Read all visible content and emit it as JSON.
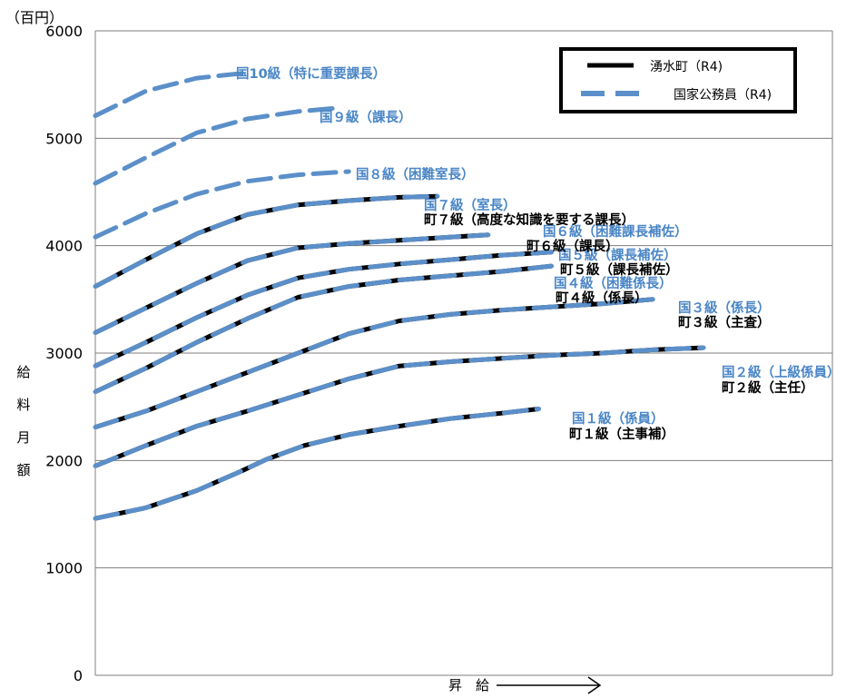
{
  "chart_data": {
    "type": "line",
    "title": "",
    "unit_label": "（百円）",
    "ylabel": "給料月額",
    "xlabel": "昇　給",
    "ylim": [
      0,
      6000
    ],
    "yticks": [
      0,
      1000,
      2000,
      3000,
      4000,
      5000,
      6000
    ],
    "grid": true,
    "legend_position": "top-right",
    "colors": {
      "town": "#000000",
      "national": "#5b8fc9",
      "kuni_label": "#4a86c6",
      "machi_label": "#000000"
    },
    "legend": [
      {
        "name": "湧水町（R4)",
        "style": "solid",
        "color": "#000000"
      },
      {
        "name": "国家公務員（R4)",
        "style": "dashed",
        "color": "#5b8fc9"
      }
    ],
    "series": [
      {
        "name": "国１級（係員）",
        "town_label": "町１級（主事補）",
        "has_town": true,
        "x": [
          0,
          8,
          16,
          23,
          27,
          33,
          40,
          48,
          56,
          64,
          70
        ],
        "values": [
          1460,
          1560,
          1720,
          1900,
          2010,
          2140,
          2240,
          2320,
          2390,
          2440,
          2480
        ]
      },
      {
        "name": "国２級（上級係員）",
        "town_label": "町２級（主任）",
        "has_town": true,
        "x": [
          0,
          8,
          16,
          24,
          32,
          40,
          48,
          56,
          64,
          72,
          80,
          88,
          96
        ],
        "values": [
          1950,
          2140,
          2320,
          2460,
          2610,
          2760,
          2880,
          2920,
          2950,
          2980,
          3000,
          3030,
          3050
        ]
      },
      {
        "name": "国３級（係長）",
        "town_label": "町３級（主査）",
        "has_town": true,
        "x": [
          0,
          8,
          16,
          24,
          32,
          40,
          48,
          56,
          64,
          72,
          80,
          88
        ],
        "values": [
          2310,
          2460,
          2640,
          2820,
          3000,
          3180,
          3300,
          3360,
          3400,
          3430,
          3460,
          3500
        ]
      },
      {
        "name": "国４級（困難係長）",
        "town_label": "町４級（係長）",
        "has_town": true,
        "x": [
          0,
          8,
          16,
          24,
          32,
          40,
          48,
          56,
          64,
          72
        ],
        "values": [
          2640,
          2860,
          3100,
          3320,
          3520,
          3620,
          3680,
          3720,
          3760,
          3810
        ]
      },
      {
        "name": "国５級（課長補佐）",
        "town_label": "町５級（課長補佐）",
        "has_town": true,
        "x": [
          0,
          8,
          16,
          24,
          32,
          40,
          48,
          56,
          64,
          72
        ],
        "values": [
          2880,
          3100,
          3330,
          3540,
          3700,
          3780,
          3830,
          3870,
          3910,
          3940
        ]
      },
      {
        "name": "国６級（困難課長補佐）",
        "town_label": "町６級（課長）",
        "has_town": true,
        "x": [
          0,
          8,
          16,
          24,
          32,
          40,
          48,
          56,
          62
        ],
        "values": [
          3190,
          3420,
          3650,
          3860,
          3980,
          4020,
          4050,
          4080,
          4100
        ]
      },
      {
        "name": "国７級（室長）",
        "town_label": "町７級（高度な知識を要する課長）",
        "has_town": true,
        "x": [
          0,
          8,
          16,
          24,
          32,
          40,
          48,
          54
        ],
        "values": [
          3620,
          3870,
          4110,
          4290,
          4380,
          4420,
          4450,
          4460
        ]
      },
      {
        "name": "国８級（困難室長）",
        "has_town": false,
        "x": [
          0,
          8,
          16,
          24,
          32,
          40
        ],
        "values": [
          4080,
          4300,
          4480,
          4600,
          4660,
          4690
        ]
      },
      {
        "name": "国９級（課長）",
        "has_town": false,
        "x": [
          0,
          8,
          16,
          24,
          32,
          38
        ],
        "values": [
          4580,
          4820,
          5050,
          5180,
          5250,
          5280
        ]
      },
      {
        "name": "国10級（特に重要課長）",
        "has_town": false,
        "x": [
          0,
          8,
          16,
          24
        ],
        "values": [
          5210,
          5440,
          5560,
          5610
        ]
      }
    ]
  }
}
